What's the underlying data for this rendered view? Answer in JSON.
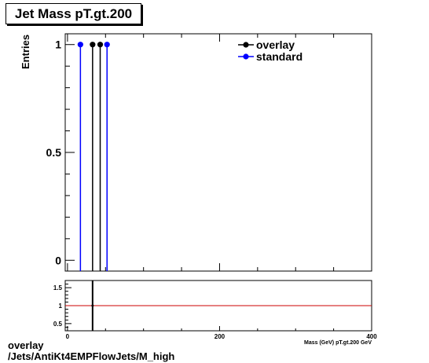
{
  "title": "Jet Mass pT.gt.200",
  "ylabel": "Entries",
  "xlabel": "Mass (GeV) pT.gt.200 GeV",
  "footer": {
    "line1": "overlay",
    "line2": "/Jets/AntiKt4EMPFlowJets/M_high"
  },
  "colors": {
    "overlay": "#000000",
    "standard": "#0000ff",
    "ratio_line": "#cc0000"
  },
  "chart_data": [
    {
      "type": "scatter",
      "ylabel": "Entries",
      "xlim": [
        -3,
        400
      ],
      "ylim": [
        -0.05,
        1.05
      ],
      "yticks": [
        0,
        0.5,
        1
      ],
      "ytick_labels": [
        "0",
        "0.5",
        "1"
      ],
      "legend": "top-right",
      "series": [
        {
          "name": "overlay",
          "color": "#000000",
          "x": [
            33,
            43
          ],
          "y": [
            1,
            1
          ]
        },
        {
          "name": "standard",
          "color": "#0000ff",
          "x": [
            17,
            52
          ],
          "y": [
            1,
            1
          ]
        }
      ]
    },
    {
      "type": "line",
      "xlabel": "Mass (GeV) pT.gt.200 GeV",
      "xlim": [
        -3,
        400
      ],
      "ylim": [
        0.3,
        1.7
      ],
      "xticks": [
        0,
        200,
        400
      ],
      "xtick_labels": [
        "0",
        "200",
        "400"
      ],
      "yticks": [
        0.5,
        1,
        1.5
      ],
      "ytick_labels": [
        "0.5",
        "1",
        "1.5"
      ],
      "reference_line": 1,
      "series": [
        {
          "color": "#000000",
          "x": [
            33
          ],
          "y": [
            1
          ]
        }
      ]
    }
  ]
}
